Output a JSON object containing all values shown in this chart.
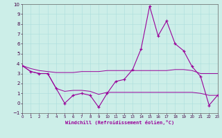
{
  "xlabel": "Windchill (Refroidissement éolien,°C)",
  "x": [
    0,
    1,
    2,
    3,
    4,
    5,
    6,
    7,
    8,
    9,
    10,
    11,
    12,
    13,
    14,
    15,
    16,
    17,
    18,
    19,
    20,
    21,
    22,
    23
  ],
  "line1": [
    3.8,
    3.2,
    3.0,
    3.0,
    1.5,
    0.0,
    0.8,
    1.0,
    0.8,
    -0.4,
    1.0,
    2.2,
    2.4,
    3.4,
    5.5,
    9.8,
    6.8,
    8.3,
    6.0,
    5.3,
    3.7,
    2.7,
    -0.2,
    0.8
  ],
  "line2": [
    3.8,
    3.2,
    3.0,
    3.0,
    1.5,
    1.2,
    1.3,
    1.3,
    1.2,
    0.9,
    1.1,
    1.1,
    1.1,
    1.1,
    1.1,
    1.1,
    1.1,
    1.1,
    1.1,
    1.1,
    1.1,
    1.0,
    0.8,
    0.8
  ],
  "line3": [
    3.8,
    3.5,
    3.3,
    3.2,
    3.1,
    3.1,
    3.1,
    3.2,
    3.2,
    3.2,
    3.3,
    3.3,
    3.3,
    3.3,
    3.3,
    3.3,
    3.3,
    3.3,
    3.4,
    3.4,
    3.3,
    3.0,
    3.0,
    3.0
  ],
  "line_color": "#990099",
  "bg_color": "#cceee8",
  "grid_color": "#aadddd",
  "ylim_min": -1,
  "ylim_max": 10,
  "xlim_min": 0,
  "xlim_max": 23
}
